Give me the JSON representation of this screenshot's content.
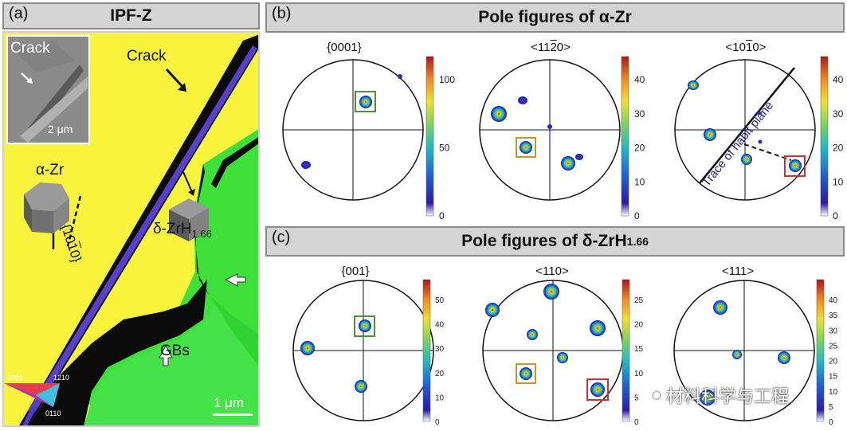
{
  "panel_a": {
    "label": "(a)",
    "title": "IPF-Z",
    "inset_label": "Crack",
    "inset_scale": "2 μm",
    "crack_label": "Crack",
    "alpha_label": "α-Zr",
    "plane_label": "{10̅1̅0}",
    "plane_main": "{10",
    "plane_bar1": "1",
    "plane_bar2": "0",
    "plane_end": "}",
    "delta_label": "δ-ZrH",
    "delta_sub": "1.66",
    "gb_label": "GBs",
    "scale_label": "1 μm",
    "key_0001": "0001",
    "key_1210": "1210",
    "key_0110": "0110",
    "colors": {
      "yellow": "#f8f43e",
      "green": "#3ee03a",
      "purple": "#5a3fcf",
      "black": "#0a0a0a"
    }
  },
  "panel_b": {
    "label": "(b)",
    "title": "Pole figures of α-Zr",
    "figures": [
      {
        "name": "{0001}",
        "cbar_ticks": [
          "100",
          "50",
          "0"
        ]
      },
      {
        "name": "<1120>",
        "name_main": "<11",
        "name_bar": "2",
        "name_end": "0>",
        "cbar_ticks": [
          "40",
          "30",
          "20",
          "10",
          "0"
        ]
      },
      {
        "name": "<1010>",
        "name_main": "<10",
        "name_bar": "1",
        "name_end": "0>",
        "cbar_ticks": [
          "40",
          "30",
          "20",
          "10",
          "0"
        ],
        "annotation": "Trace of habit plane"
      }
    ]
  },
  "panel_c": {
    "label": "(c)",
    "title": "Pole figures of δ-ZrH",
    "title_sub": "1.66",
    "figures": [
      {
        "name": "{001}",
        "cbar_ticks": [
          "50",
          "40",
          "30",
          "20",
          "10",
          "0"
        ]
      },
      {
        "name": "<110>",
        "cbar_ticks": [
          "25",
          "20",
          "15",
          "10",
          "5",
          "0"
        ]
      },
      {
        "name": "<111>",
        "cbar_ticks": [
          "40",
          "35",
          "30",
          "25",
          "20",
          "15",
          "10",
          "5",
          "0"
        ]
      }
    ]
  },
  "watermark": "材料科学与工程"
}
